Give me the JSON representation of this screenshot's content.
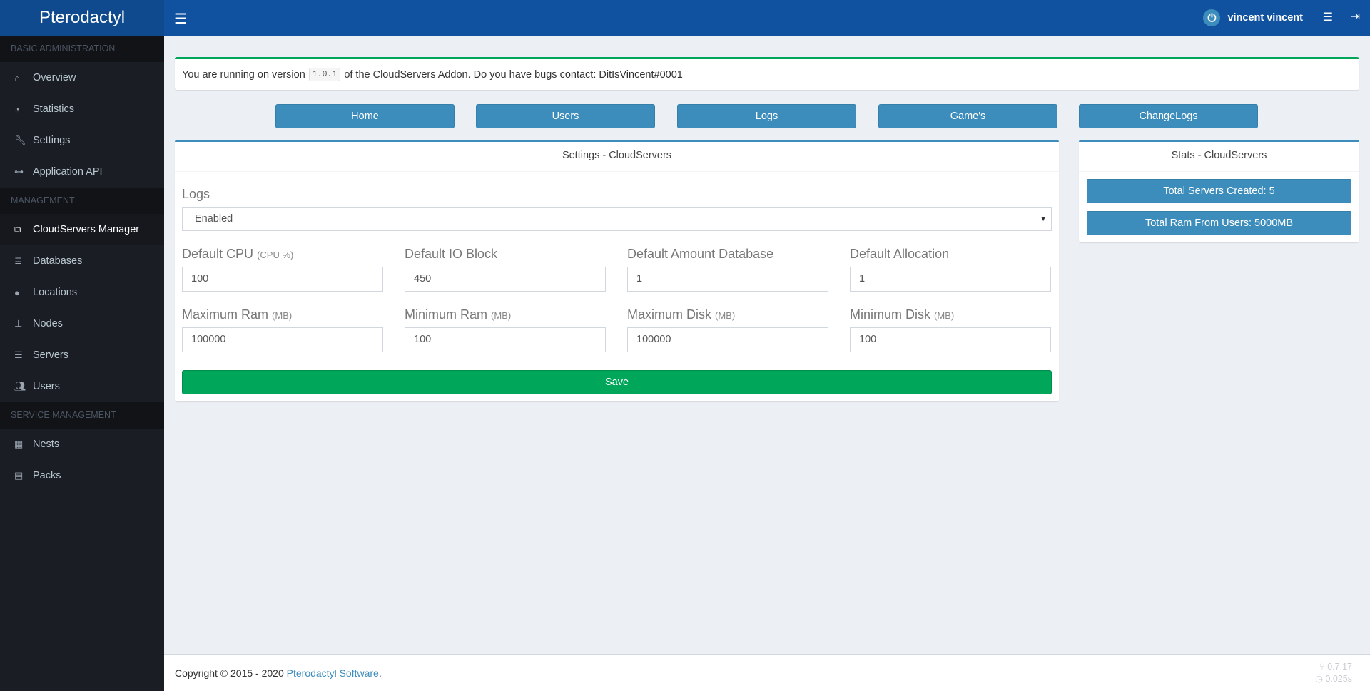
{
  "app": {
    "title": "Pterodactyl"
  },
  "header": {
    "user_name": "vincent vincent"
  },
  "sidebar": {
    "sections": [
      {
        "title": "BASIC ADMINISTRATION",
        "items": [
          {
            "label": "Overview",
            "icon": "home-icon"
          },
          {
            "label": "Statistics",
            "icon": "dashboard-icon"
          },
          {
            "label": "Settings",
            "icon": "wrench-icon"
          },
          {
            "label": "Application API",
            "icon": "gamepad-icon"
          }
        ]
      },
      {
        "title": "MANAGEMENT",
        "items": [
          {
            "label": "CloudServers Manager",
            "icon": "clone-icon",
            "active": true
          },
          {
            "label": "Databases",
            "icon": "database-icon"
          },
          {
            "label": "Locations",
            "icon": "globe-icon"
          },
          {
            "label": "Nodes",
            "icon": "sitemap-icon"
          },
          {
            "label": "Servers",
            "icon": "server-icon"
          },
          {
            "label": "Users",
            "icon": "users-icon"
          }
        ]
      },
      {
        "title": "SERVICE MANAGEMENT",
        "items": [
          {
            "label": "Nests",
            "icon": "th-large-icon"
          },
          {
            "label": "Packs",
            "icon": "archive-icon"
          }
        ]
      }
    ]
  },
  "notice": {
    "prefix": "You are running on version",
    "version": "1.0.1",
    "suffix": "of the CloudServers Addon. Do you have bugs contact: DitIsVincent#0001"
  },
  "nav_buttons": [
    "Home",
    "Users",
    "Logs",
    "Game's",
    "ChangeLogs"
  ],
  "settings": {
    "title": "Settings - CloudServers",
    "logs_label": "Logs",
    "logs_value": "Enabled",
    "fields": [
      {
        "label": "Default CPU",
        "unit": "(CPU %)",
        "value": "100"
      },
      {
        "label": "Default IO Block",
        "unit": "",
        "value": "450"
      },
      {
        "label": "Default Amount Database",
        "unit": "",
        "value": "1"
      },
      {
        "label": "Default Allocation",
        "unit": "",
        "value": "1"
      },
      {
        "label": "Maximum Ram",
        "unit": "(MB)",
        "value": "100000"
      },
      {
        "label": "Minimum Ram",
        "unit": "(MB)",
        "value": "100"
      },
      {
        "label": "Maximum Disk",
        "unit": "(MB)",
        "value": "100000"
      },
      {
        "label": "Minimum Disk",
        "unit": "(MB)",
        "value": "100"
      }
    ],
    "save_label": "Save"
  },
  "stats": {
    "title": "Stats - CloudServers",
    "items": [
      "Total Servers Created: 5",
      "Total Ram From Users: 5000MB"
    ]
  },
  "footer": {
    "copyright": "Copyright © 2015 - 2020",
    "link": "Pterodactyl Software",
    "period": ".",
    "version": "0.7.17",
    "time": "0.025s"
  },
  "colors": {
    "header": "#10529f",
    "sidebar": "#1a1d24",
    "primary": "#3c8dbc",
    "success": "#00a65a"
  }
}
